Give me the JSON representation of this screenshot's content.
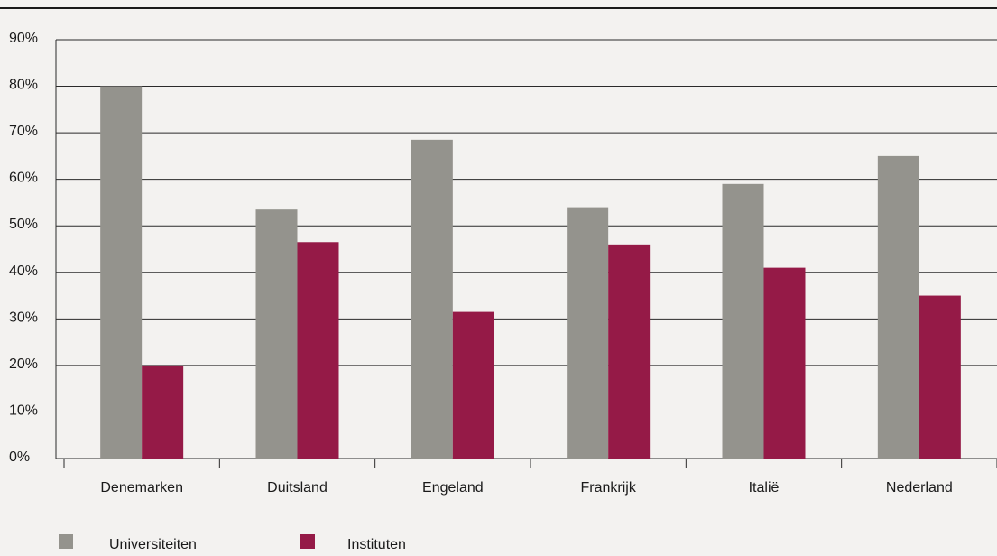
{
  "chart_data": {
    "type": "bar",
    "title": "",
    "xlabel": "",
    "ylabel": "",
    "categories": [
      "Denemarken",
      "Duitsland",
      "Engeland",
      "Frankrijk",
      "Italië",
      "Nederland"
    ],
    "series": [
      {
        "name": "Universiteiten",
        "values": [
          80,
          53.5,
          68.5,
          54,
          59,
          65
        ],
        "color": "#94938d"
      },
      {
        "name": "Instituten",
        "values": [
          20,
          46.5,
          31.5,
          46,
          41,
          35
        ],
        "color": "#951a47"
      }
    ],
    "ylim": [
      0,
      90
    ],
    "yticks": [
      "0%",
      "10%",
      "20%",
      "30%",
      "40%",
      "50%",
      "60%",
      "70%",
      "80%",
      "90%"
    ],
    "grid": true,
    "legend_position": "bottom-left"
  },
  "legend": {
    "items": [
      {
        "label": "Universiteiten",
        "color": "#94938d"
      },
      {
        "label": "Instituten",
        "color": "#951a47"
      }
    ]
  }
}
